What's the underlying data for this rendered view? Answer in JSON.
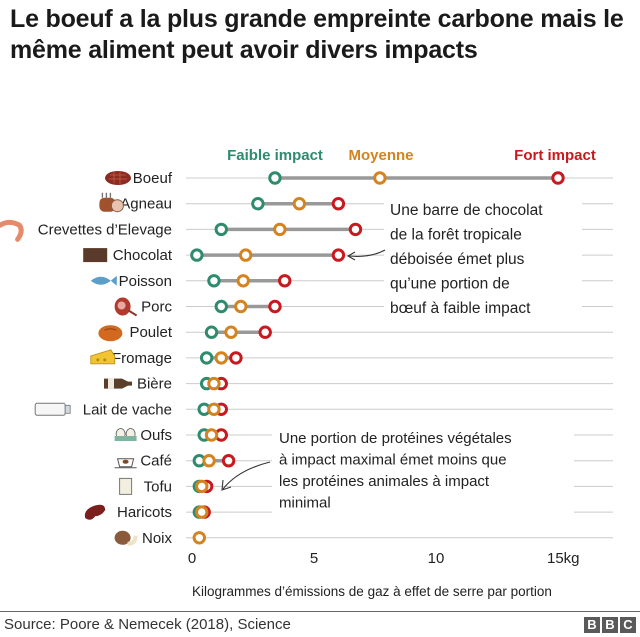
{
  "header": {
    "title": "Le boeuf a la plus grande empreinte carbone mais le même aliment peut avoir divers impacts"
  },
  "legend": {
    "low": {
      "label": "Faible impact",
      "color": "#2e8b6e"
    },
    "mid": {
      "label": "Moyenne",
      "color": "#d4831e"
    },
    "high": {
      "label": "Fort impact",
      "color": "#c8191f"
    }
  },
  "annotations": {
    "chocolate": [
      "Une barre de chocolat",
      "de la forêt tropicale",
      "déboisée émet plus",
      "qu’une portion de",
      "bœuf à faible impact"
    ],
    "plant_protein": [
      "Une portion de protéines végétales",
      "à impact maximal émet moins que",
      "les protéines animales à impact",
      "minimal"
    ]
  },
  "footer": {
    "source": "Source: Poore & Nemecek (2018), Science",
    "logo_letters": [
      "B",
      "B",
      "C"
    ]
  },
  "chart_data": {
    "type": "dot-range",
    "title": "Le boeuf a la plus grande empreinte carbone mais le même aliment peut avoir divers impacts",
    "xlabel": "Kilogrammes d’émissions de gaz à effet de serre par portion",
    "ylabel": "",
    "xlim": [
      0,
      16.8
    ],
    "xticks": [
      0,
      5,
      10,
      15
    ],
    "xtick_labels": [
      "0",
      "5",
      "10",
      "15kg"
    ],
    "grid": true,
    "legend_position": "top",
    "categories": [
      "Boeuf",
      "Agneau",
      "Crevettes d’Elevage",
      "Chocolat",
      "Poisson",
      "Porc",
      "Poulet",
      "Fromage",
      "Bière",
      "Lait de vache",
      "Oufs",
      "Café",
      "Tofu",
      "Haricots",
      "Noix"
    ],
    "icons": [
      "steak-icon",
      "lamb-icon",
      "shrimp-icon",
      "chocolate-bar-icon",
      "fish-icon",
      "ham-icon",
      "roast-chicken-icon",
      "cheese-icon",
      "beer-bottle-icon",
      "milk-carton-icon",
      "eggs-icon",
      "coffee-cup-icon",
      "tofu-icon",
      "bean-icon",
      "nut-icon"
    ],
    "series": [
      {
        "name": "Faible impact",
        "values": [
          3.4,
          2.7,
          1.2,
          0.2,
          0.9,
          1.2,
          0.8,
          0.6,
          0.6,
          0.5,
          0.5,
          0.3,
          0.3,
          0.3,
          null
        ]
      },
      {
        "name": "Moyenne",
        "values": [
          7.7,
          4.4,
          3.6,
          2.2,
          2.1,
          2.0,
          1.6,
          1.2,
          0.9,
          0.9,
          0.8,
          0.7,
          0.4,
          0.4,
          0.3
        ]
      },
      {
        "name": "Fort impact",
        "values": [
          15.0,
          6.0,
          6.7,
          6.0,
          3.8,
          3.4,
          3.0,
          1.8,
          1.2,
          1.2,
          1.2,
          1.5,
          0.6,
          0.5,
          null
        ]
      }
    ]
  }
}
